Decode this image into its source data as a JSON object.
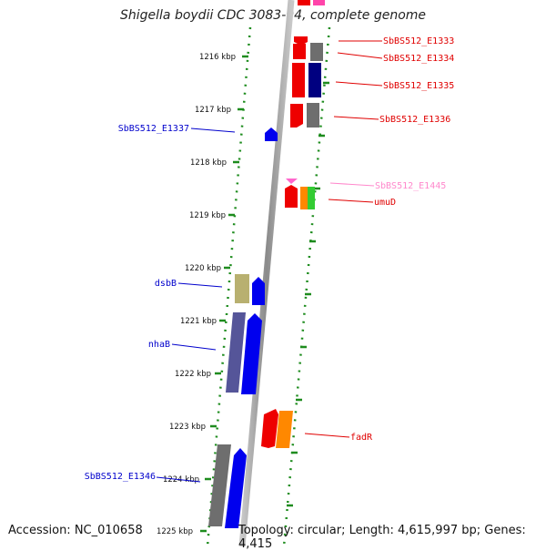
{
  "title": "Shigella boydii CDC 3083-94, complete genome",
  "accession": "Accession: NC_010658",
  "topology": "Topology: circular; Length: 4,615,997 bp; Genes: 4,415",
  "ticks": [
    "1216 kbp",
    "1217 kbp",
    "1218 kbp",
    "1219 kbp",
    "1220 kbp",
    "1221 kbp",
    "1222 kbp",
    "1223 kbp",
    "1224 kbp",
    "1225 kbp"
  ],
  "labels": [
    {
      "text": "SbBS512_E1333",
      "color": "#e00000"
    },
    {
      "text": "SbBS512_E1334",
      "color": "#e00000"
    },
    {
      "text": "SbBS512_E1335",
      "color": "#e00000"
    },
    {
      "text": "SbBS512_E1336",
      "color": "#e00000"
    },
    {
      "text": "SbBS512_E1337",
      "color": "#0000cc"
    },
    {
      "text": "SbBS512_E1445",
      "color": "#ff88cc"
    },
    {
      "text": "umuD",
      "color": "#e00000"
    },
    {
      "text": "dsbB",
      "color": "#0000cc"
    },
    {
      "text": "nhaB",
      "color": "#0000cc"
    },
    {
      "text": "fadR",
      "color": "#e00000"
    },
    {
      "text": "SbBS512_E1346",
      "color": "#0000cc"
    }
  ],
  "colors": {
    "backbone": "#8c8c8c",
    "dots": "#1e8c1e",
    "red": "#ee0000",
    "blue": "#0000ee",
    "gray": "#6e6e6e",
    "navy": "#000080",
    "pink": "#ff66cc",
    "orange": "#ff8800",
    "green": "#33cc33",
    "khaki": "#b8b070",
    "slate": "#555599"
  }
}
